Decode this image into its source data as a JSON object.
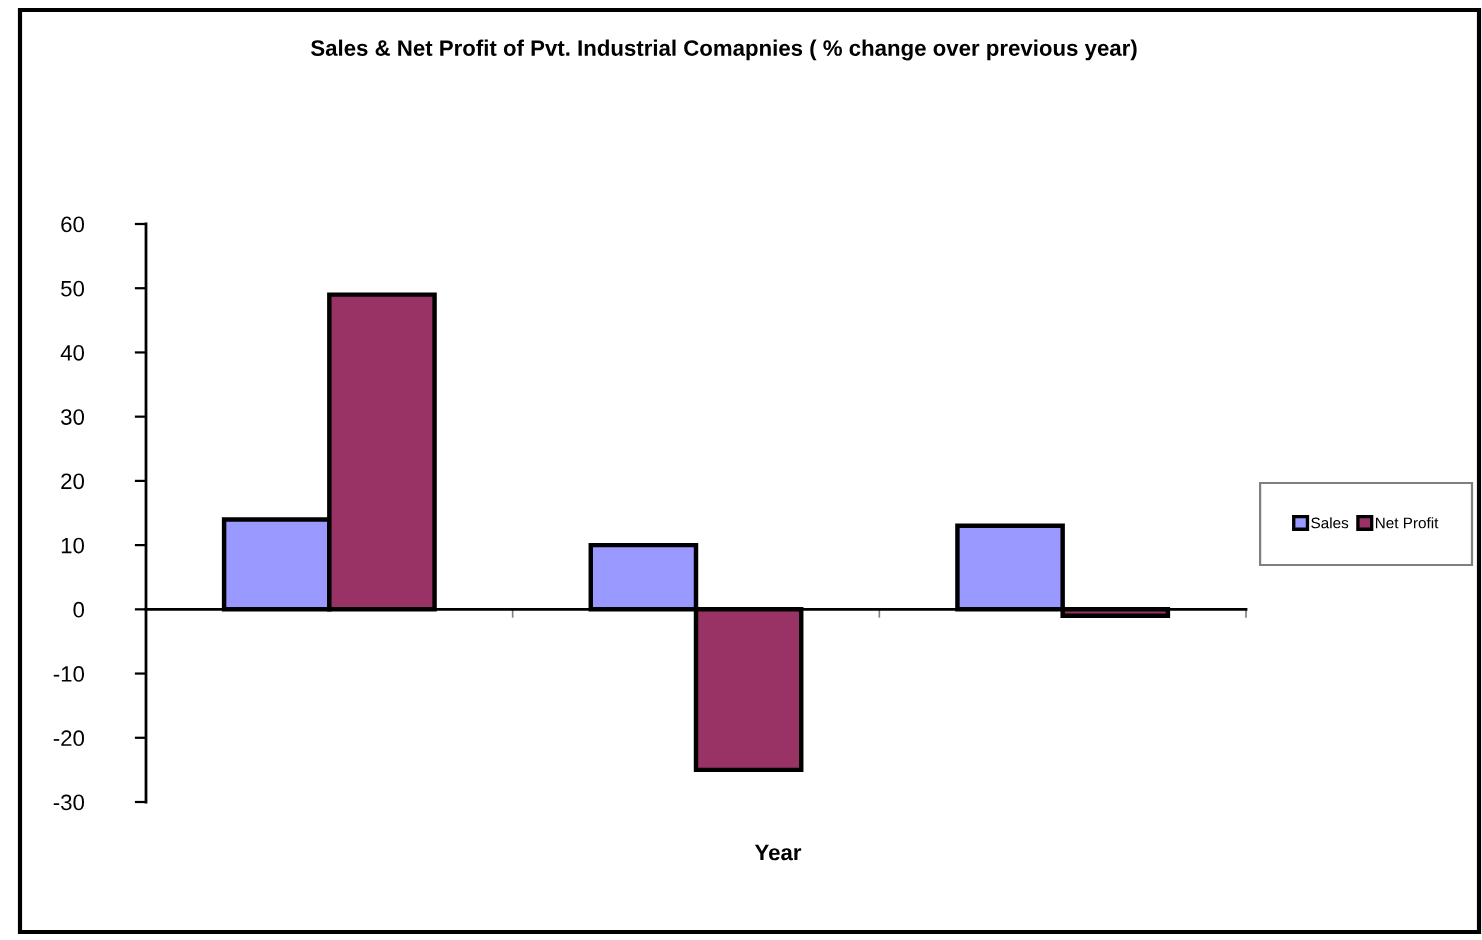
{
  "chart_data": {
    "type": "bar",
    "title": "Sales & Net Profit of Pvt. Industrial Comapnies ( % change over previous year)",
    "xlabel": "Year",
    "categories": [
      null,
      null,
      null
    ],
    "series": [
      {
        "name": "Sales",
        "color": "#9999ff",
        "values": [
          14,
          10,
          13
        ]
      },
      {
        "name": "Net Profit",
        "color": "#993366",
        "values": [
          49,
          -25,
          -1
        ]
      }
    ],
    "ylim": [
      -30,
      60
    ],
    "yticks": [
      -30,
      -20,
      -10,
      0,
      10,
      20,
      30,
      40,
      50,
      60
    ],
    "legend": "right"
  }
}
